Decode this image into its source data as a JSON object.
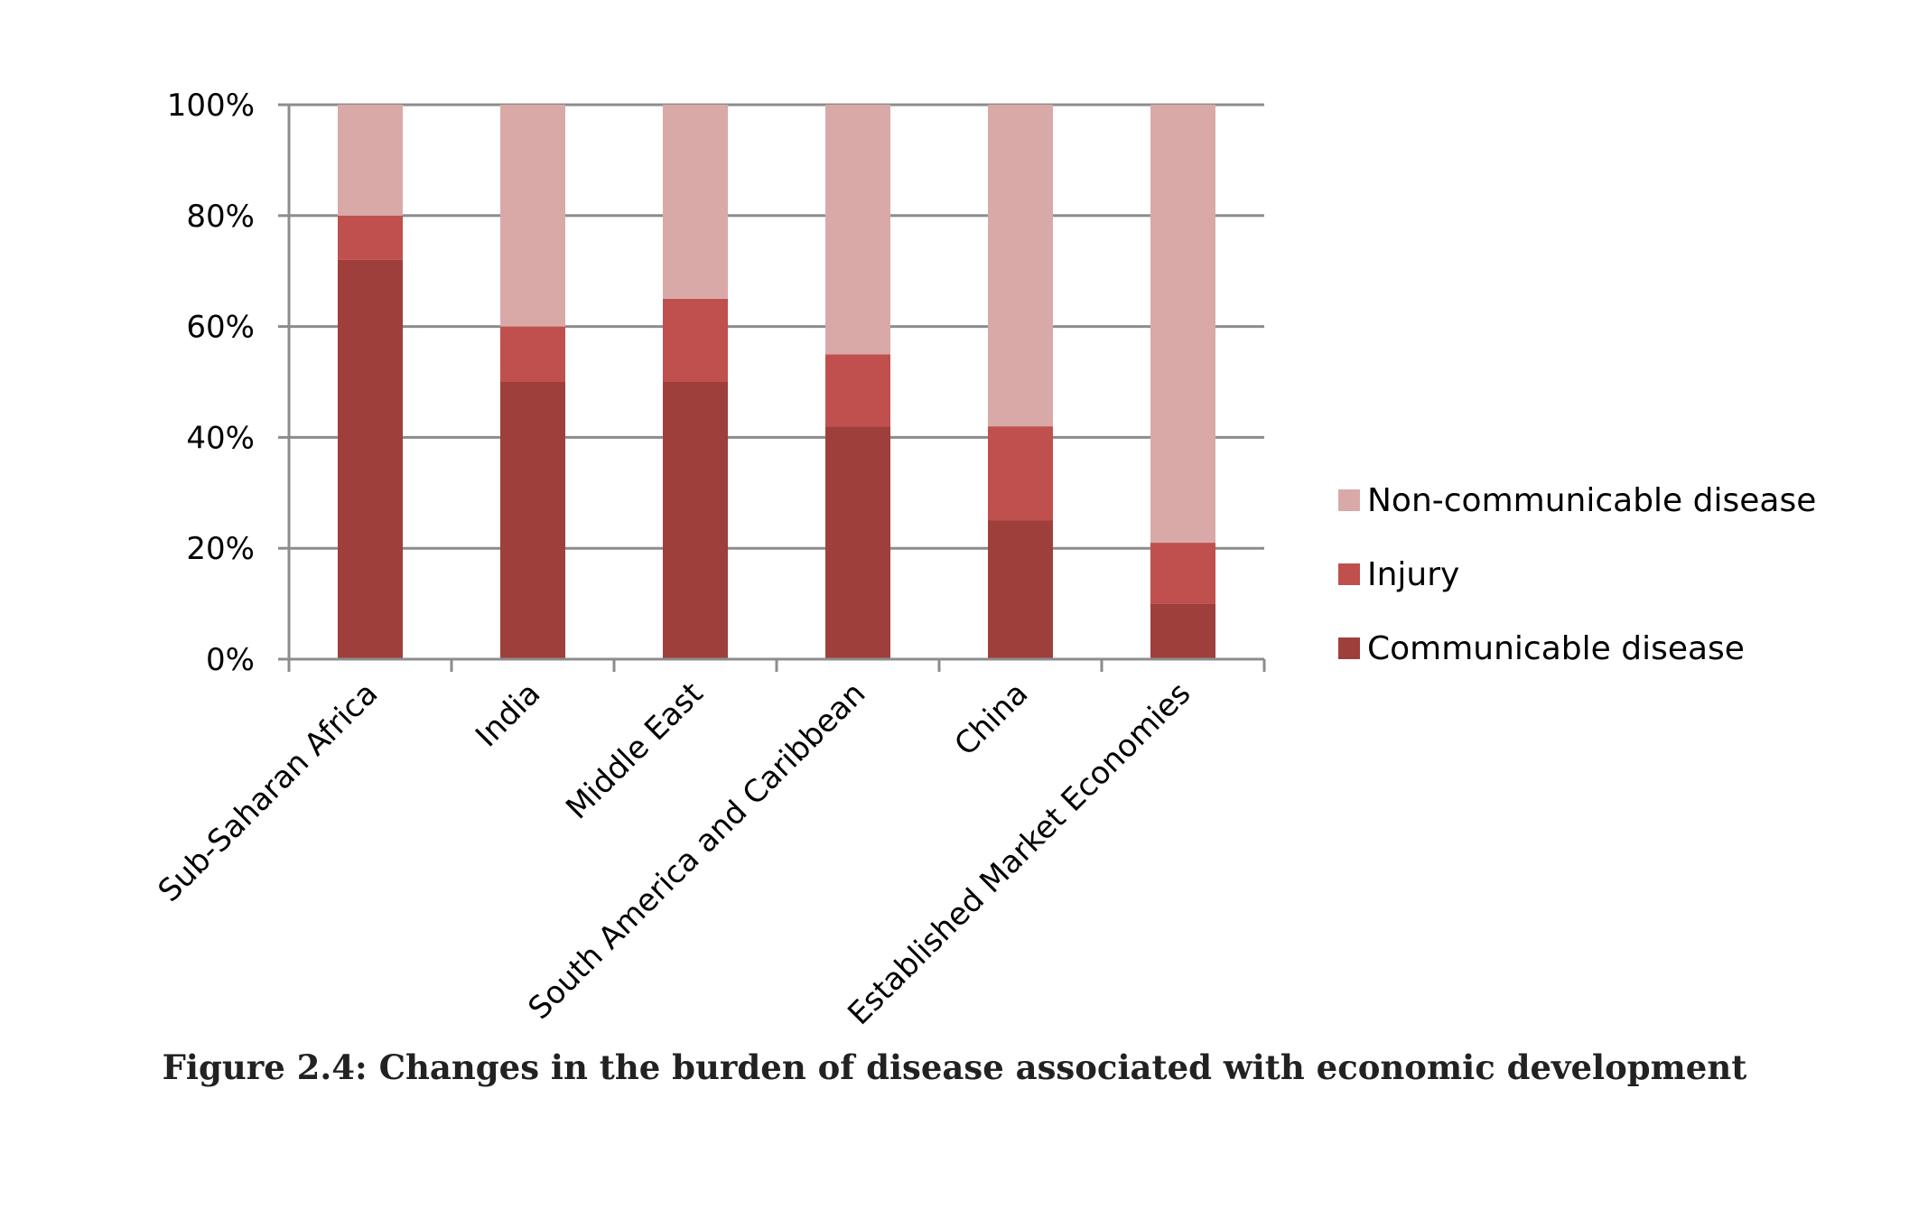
{
  "caption": "Figure 2.4: Changes in the burden of disease associated with economic development",
  "chart_data": {
    "type": "bar",
    "stacked": true,
    "categories": [
      "Sub-Saharan Africa",
      "India",
      "Middle East",
      "South America and Caribbean",
      "China",
      "Established Market Economies"
    ],
    "series": [
      {
        "name": "Communicable disease",
        "color": "#9e3f3c",
        "values": [
          72,
          50,
          50,
          42,
          25,
          10
        ]
      },
      {
        "name": "Injury",
        "color": "#c0504d",
        "values": [
          8,
          10,
          15,
          13,
          17,
          11
        ]
      },
      {
        "name": "Non-communicable disease",
        "color": "#d9a9a8",
        "values": [
          20,
          40,
          35,
          45,
          58,
          79
        ]
      }
    ],
    "yticks": [
      "0%",
      "20%",
      "40%",
      "60%",
      "80%",
      "100%"
    ],
    "ylim": [
      0,
      100
    ],
    "grid": true,
    "legend_position": "right",
    "legend_order": [
      "Non-communicable disease",
      "Injury",
      "Communicable disease"
    ]
  }
}
